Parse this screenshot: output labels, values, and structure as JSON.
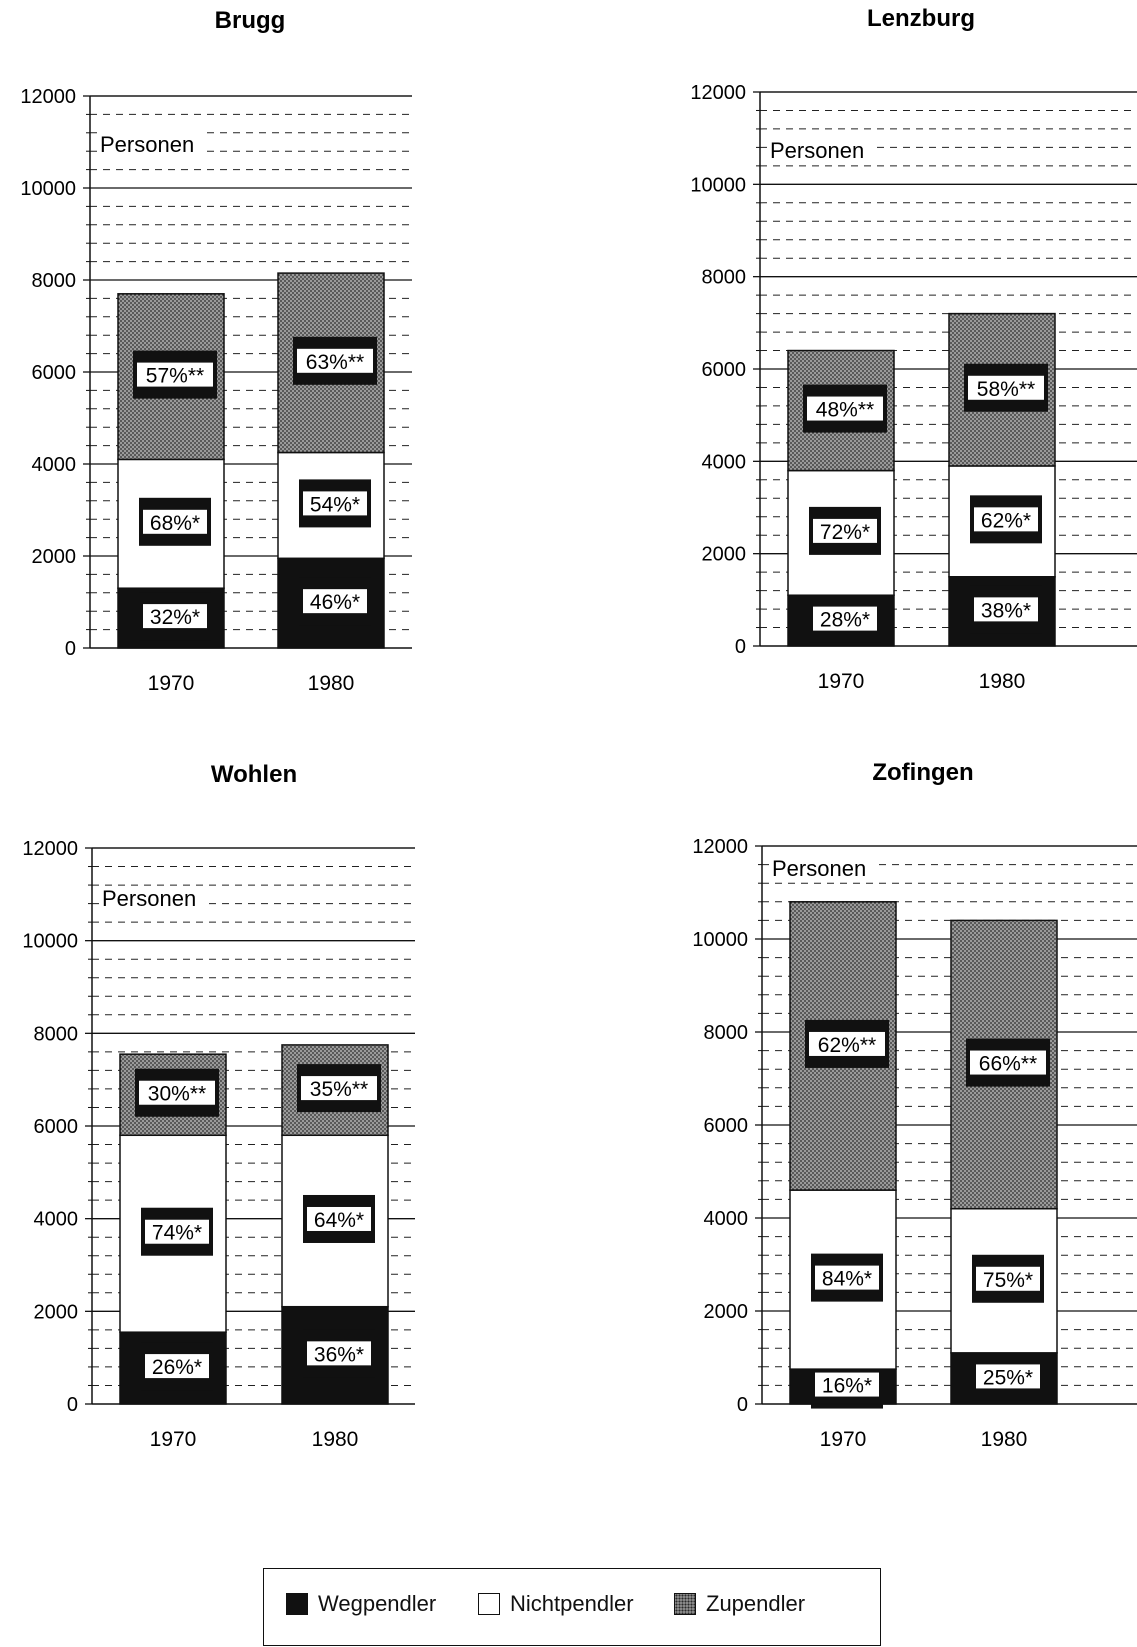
{
  "legend": {
    "items": [
      {
        "label": "Wegpendler",
        "swatch": "black"
      },
      {
        "label": "Nichtpendler",
        "swatch": "white"
      },
      {
        "label": "Zupendler",
        "swatch": "dots"
      }
    ]
  },
  "colors": {
    "wegpendler": "#111111",
    "nichtpendler": "#ffffff",
    "zupendler": "#8c8c8c"
  },
  "chart_data": [
    {
      "type": "bar",
      "stacked": true,
      "title": "Brugg",
      "unit_label": "Personen",
      "categories": [
        "1970",
        "1980"
      ],
      "ylim": [
        0,
        12000
      ],
      "yticks": [
        0,
        2000,
        4000,
        6000,
        8000,
        10000,
        12000
      ],
      "series": [
        {
          "name": "Wegpendler",
          "values": [
            1300,
            1950
          ],
          "labels": [
            "32%*",
            "46%*"
          ]
        },
        {
          "name": "Nichtpendler",
          "values": [
            2800,
            2300
          ],
          "labels": [
            "68%*",
            "54%*"
          ]
        },
        {
          "name": "Zupendler",
          "values": [
            3600,
            3900
          ],
          "labels": [
            "57%**",
            "63%**"
          ]
        }
      ]
    },
    {
      "type": "bar",
      "stacked": true,
      "title": "Lenzburg",
      "unit_label": "Personen",
      "categories": [
        "1970",
        "1980"
      ],
      "ylim": [
        0,
        12000
      ],
      "yticks": [
        0,
        2000,
        4000,
        6000,
        8000,
        10000,
        12000
      ],
      "series": [
        {
          "name": "Wegpendler",
          "values": [
            1100,
            1500
          ],
          "labels": [
            "28%*",
            "38%*"
          ]
        },
        {
          "name": "Nichtpendler",
          "values": [
            2700,
            2400
          ],
          "labels": [
            "72%*",
            "62%*"
          ]
        },
        {
          "name": "Zupendler",
          "values": [
            2600,
            3300
          ],
          "labels": [
            "48%**",
            "58%**"
          ]
        }
      ]
    },
    {
      "type": "bar",
      "stacked": true,
      "title": "Wohlen",
      "unit_label": "Personen",
      "categories": [
        "1970",
        "1980"
      ],
      "ylim": [
        0,
        12000
      ],
      "yticks": [
        0,
        2000,
        4000,
        6000,
        8000,
        10000,
        12000
      ],
      "series": [
        {
          "name": "Wegpendler",
          "values": [
            1550,
            2100
          ],
          "labels": [
            "26%*",
            "36%*"
          ]
        },
        {
          "name": "Nichtpendler",
          "values": [
            4250,
            3700
          ],
          "labels": [
            "74%*",
            "64%*"
          ]
        },
        {
          "name": "Zupendler",
          "values": [
            1750,
            1950
          ],
          "labels": [
            "30%**",
            "35%**"
          ]
        }
      ]
    },
    {
      "type": "bar",
      "stacked": true,
      "title": "Zofingen",
      "unit_label": "Personen",
      "categories": [
        "1970",
        "1980"
      ],
      "ylim": [
        0,
        12000
      ],
      "yticks": [
        0,
        2000,
        4000,
        6000,
        8000,
        10000,
        12000
      ],
      "series": [
        {
          "name": "Wegpendler",
          "values": [
            750,
            1100
          ],
          "labels": [
            "16%*",
            "25%*"
          ]
        },
        {
          "name": "Nichtpendler",
          "values": [
            3850,
            3100
          ],
          "labels": [
            "84%*",
            "75%*"
          ]
        },
        {
          "name": "Zupendler",
          "values": [
            6200,
            6200
          ],
          "labels": [
            "62%**",
            "66%**"
          ]
        }
      ]
    }
  ]
}
